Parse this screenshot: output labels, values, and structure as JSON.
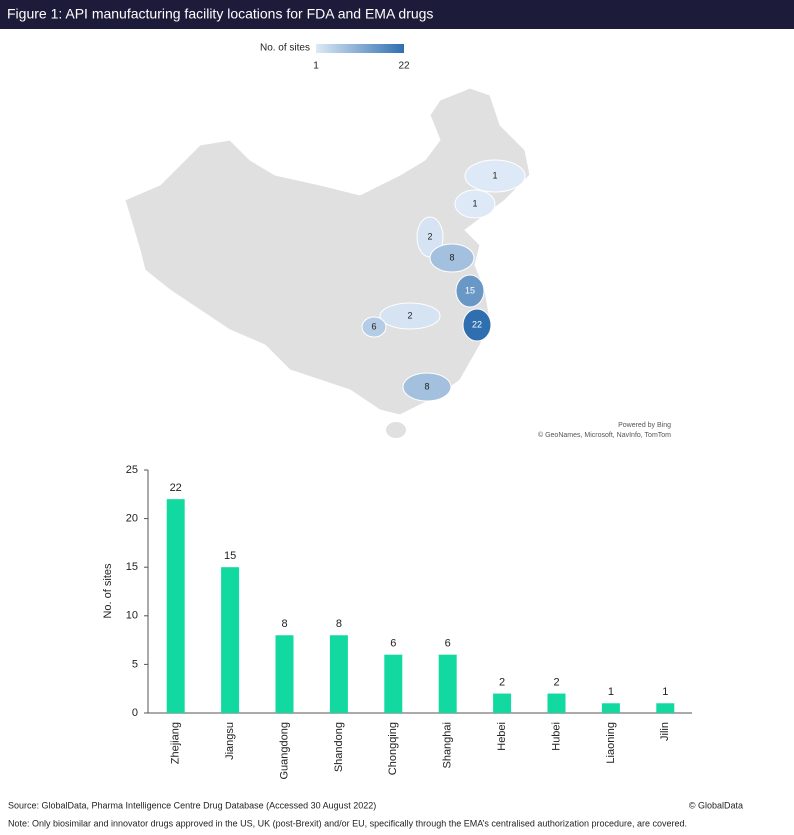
{
  "title": "Figure 1: API manufacturing facility locations for FDA and EMA drugs",
  "chart_data": [
    {
      "type": "map",
      "legend_title": "No. of sites",
      "colorlim": [
        1,
        22
      ],
      "colorticks": [
        1,
        22
      ],
      "colors": [
        "#dde9f6",
        "#2f6faf"
      ],
      "values": [
        1,
        1,
        2,
        8,
        15,
        22,
        2,
        6,
        8
      ],
      "credits": [
        "Powered by Bing",
        "© GeoNames, Microsoft, NavInfo, TomTom"
      ]
    },
    {
      "type": "bar",
      "ylabel": "No. of sites",
      "categories": [
        "Zhejiang",
        "Jiangsu",
        "Guangdong",
        "Shandong",
        "Chongqing",
        "Shanghai",
        "Hebei",
        "Hubei",
        "Liaoning",
        "Jilin"
      ],
      "values": [
        22,
        15,
        8,
        8,
        6,
        6,
        2,
        2,
        1,
        1
      ],
      "color": "#12d9a0",
      "ylim": [
        0,
        25
      ],
      "yticks": [
        0,
        5,
        10,
        15,
        20,
        25
      ]
    }
  ],
  "footer": {
    "source": "Source: GlobalData, Pharma Intelligence Centre Drug Database (Accessed 30 August 2022)",
    "copyright": "© GlobalData",
    "note": "Note: Only biosimilar and innovator drugs approved in the US, UK (post-Brexit) and/or EU, specifically through the EMA’s centralised authorization procedure, are covered."
  }
}
